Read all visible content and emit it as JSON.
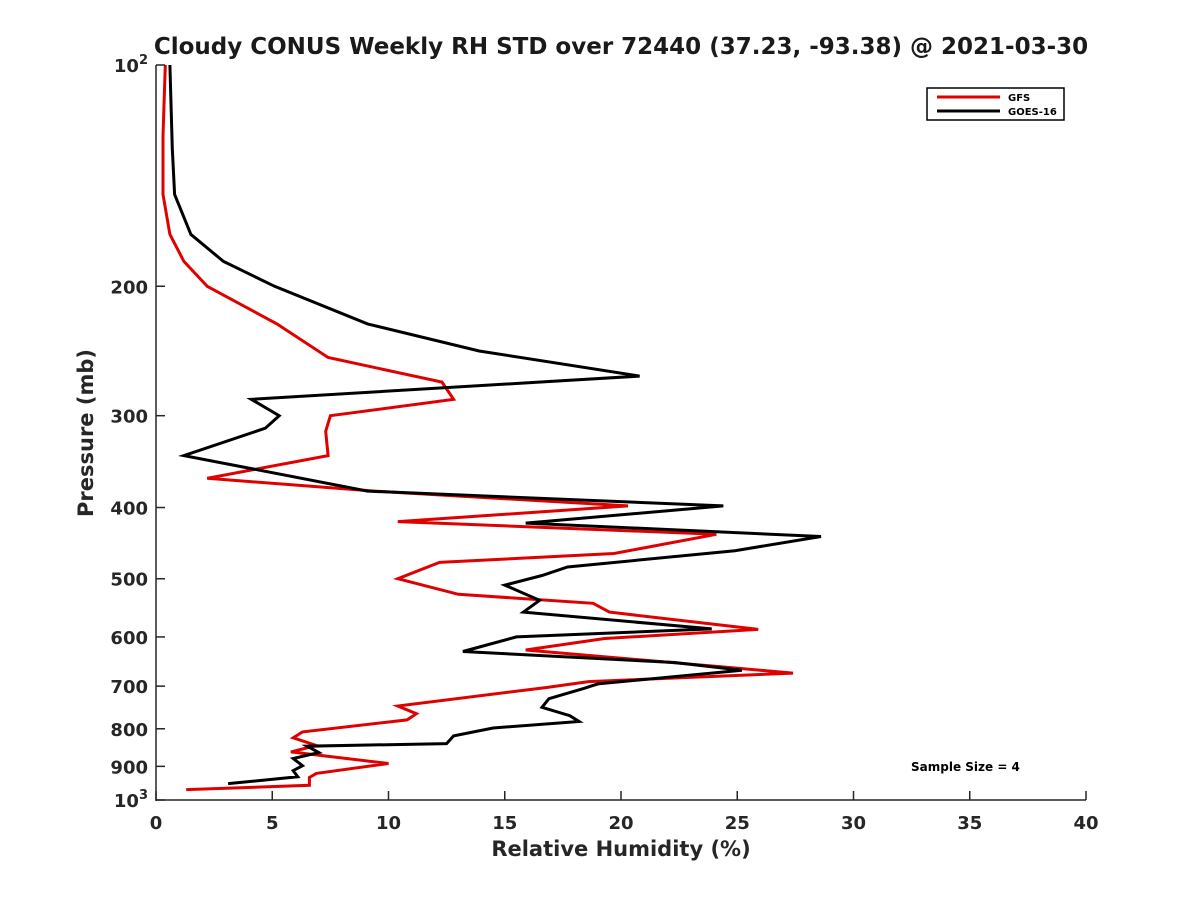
{
  "chart_data": {
    "type": "line",
    "title": "Cloudy CONUS Weekly RH STD over 72440 (37.23, -93.38) @ 2021-03-30",
    "xlabel": "Relative Humidity (%)",
    "ylabel": "Pressure (mb)",
    "xlim": [
      0,
      40
    ],
    "ylim": [
      1000,
      100
    ],
    "y_scale": "log",
    "y_reversed": true,
    "grid": false,
    "legend_position": "top-right",
    "x_ticks": [
      0,
      5,
      10,
      15,
      20,
      25,
      30,
      35,
      40
    ],
    "y_ticks": [
      {
        "value": 100,
        "base": "10",
        "exp": "2"
      },
      {
        "value": 200,
        "label": "200"
      },
      {
        "value": 300,
        "label": "300"
      },
      {
        "value": 400,
        "label": "400"
      },
      {
        "value": 500,
        "label": "500"
      },
      {
        "value": 600,
        "label": "600"
      },
      {
        "value": 700,
        "label": "700"
      },
      {
        "value": 800,
        "label": "800"
      },
      {
        "value": 900,
        "label": "900"
      },
      {
        "value": 1000,
        "base": "10",
        "exp": "3"
      }
    ],
    "annotation": "Sample Size = 4",
    "series": [
      {
        "name": "GFS",
        "color": "#e00000",
        "points": [
          [
            0.4,
            100
          ],
          [
            0.3,
            125
          ],
          [
            0.3,
            150
          ],
          [
            0.6,
            170
          ],
          [
            1.2,
            185
          ],
          [
            2.2,
            200
          ],
          [
            5.2,
            225
          ],
          [
            7.4,
            250
          ],
          [
            12.3,
            270
          ],
          [
            12.8,
            285
          ],
          [
            7.5,
            300
          ],
          [
            7.3,
            315
          ],
          [
            7.4,
            340
          ],
          [
            2.2,
            365
          ],
          [
            9.4,
            380
          ],
          [
            20.3,
            398
          ],
          [
            10.4,
            418
          ],
          [
            24.1,
            435
          ],
          [
            19.7,
            462
          ],
          [
            12.2,
            475
          ],
          [
            10.4,
            500
          ],
          [
            13.0,
            525
          ],
          [
            18.8,
            540
          ],
          [
            19.5,
            555
          ],
          [
            25.9,
            586
          ],
          [
            19.3,
            603
          ],
          [
            15.9,
            625
          ],
          [
            24.6,
            660
          ],
          [
            27.4,
            672
          ],
          [
            18.6,
            690
          ],
          [
            16.8,
            703
          ],
          [
            10.4,
            745
          ],
          [
            11.2,
            763
          ],
          [
            10.8,
            778
          ],
          [
            6.3,
            808
          ],
          [
            5.9,
            823
          ],
          [
            6.9,
            843
          ],
          [
            5.8,
            860
          ],
          [
            10.0,
            892
          ],
          [
            6.9,
            920
          ],
          [
            6.6,
            932
          ],
          [
            6.6,
            955
          ],
          [
            1.3,
            968
          ]
        ]
      },
      {
        "name": "GOES-16",
        "color": "#000000",
        "points": [
          [
            0.6,
            100
          ],
          [
            0.7,
            130
          ],
          [
            0.8,
            150
          ],
          [
            1.5,
            170
          ],
          [
            2.9,
            185
          ],
          [
            5.1,
            200
          ],
          [
            9.1,
            225
          ],
          [
            13.9,
            245
          ],
          [
            20.8,
            265
          ],
          [
            4.1,
            285
          ],
          [
            5.3,
            300
          ],
          [
            4.7,
            312
          ],
          [
            1.2,
            340
          ],
          [
            9.1,
            380
          ],
          [
            24.4,
            398
          ],
          [
            15.9,
            420
          ],
          [
            28.6,
            438
          ],
          [
            24.9,
            458
          ],
          [
            17.7,
            482
          ],
          [
            16.6,
            495
          ],
          [
            15.0,
            510
          ],
          [
            16.5,
            535
          ],
          [
            15.8,
            555
          ],
          [
            23.9,
            585
          ],
          [
            15.5,
            600
          ],
          [
            13.2,
            628
          ],
          [
            22.3,
            650
          ],
          [
            25.2,
            666
          ],
          [
            19.0,
            695
          ],
          [
            18.4,
            705
          ],
          [
            16.9,
            728
          ],
          [
            16.6,
            748
          ],
          [
            17.8,
            768
          ],
          [
            18.2,
            782
          ],
          [
            14.5,
            798
          ],
          [
            12.8,
            818
          ],
          [
            12.5,
            838
          ],
          [
            6.5,
            845
          ],
          [
            7.0,
            862
          ],
          [
            5.9,
            878
          ],
          [
            6.3,
            898
          ],
          [
            5.9,
            912
          ],
          [
            6.1,
            930
          ],
          [
            3.1,
            950
          ]
        ]
      }
    ]
  }
}
